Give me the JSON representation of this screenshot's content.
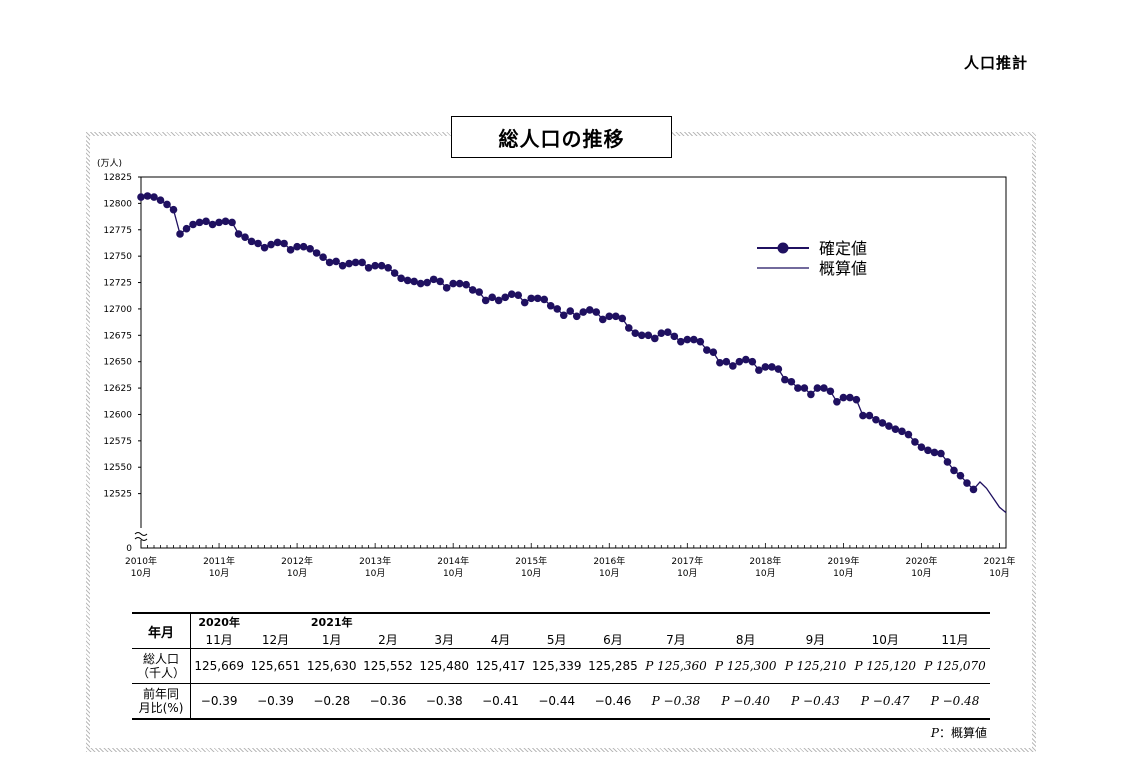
{
  "page": {
    "header_label": "人口推計"
  },
  "chart_data": {
    "type": "line",
    "title": "総人口の推移",
    "yunit": "(万人)",
    "ylim": [
      12500,
      12825
    ],
    "y_ticks": [
      12825,
      12800,
      12775,
      12750,
      12725,
      12700,
      12675,
      12650,
      12625,
      12600,
      12575,
      12550,
      12525
    ],
    "y_zero_label": "0",
    "y_axis_break": true,
    "x_ticks": [
      {
        "year": "2010年",
        "month": "10月"
      },
      {
        "year": "2011年",
        "month": "10月"
      },
      {
        "year": "2012年",
        "month": "10月"
      },
      {
        "year": "2013年",
        "month": "10月"
      },
      {
        "year": "2014年",
        "month": "10月"
      },
      {
        "year": "2015年",
        "month": "10月"
      },
      {
        "year": "2016年",
        "month": "10月"
      },
      {
        "year": "2017年",
        "month": "10月"
      },
      {
        "year": "2018年",
        "month": "10月"
      },
      {
        "year": "2019年",
        "month": "10月"
      },
      {
        "year": "2020年",
        "month": "10月"
      },
      {
        "year": "2021年",
        "month": "10月"
      }
    ],
    "legend": {
      "position": "top-right",
      "entries": [
        "確定値",
        "概算値"
      ]
    },
    "colors": {
      "line": "#1f1060",
      "marker": "#1f1060"
    },
    "series": [
      {
        "name": "確定値",
        "marker": "circle",
        "values": [
          12806,
          12807,
          12806,
          12803,
          12799,
          12794,
          12771,
          12776,
          12780,
          12782,
          12783,
          12780,
          12782,
          12783,
          12782,
          12771,
          12768,
          12764,
          12762,
          12758,
          12761,
          12763,
          12762,
          12756,
          12759,
          12759,
          12757,
          12753,
          12749,
          12744,
          12745,
          12741,
          12743,
          12744,
          12744,
          12739,
          12741,
          12741,
          12739,
          12734,
          12729,
          12727,
          12726,
          12724,
          12725,
          12728,
          12726,
          12720,
          12724,
          12724,
          12723,
          12718,
          12716,
          12708,
          12711,
          12708,
          12711,
          12714,
          12713,
          12706,
          12710,
          12710,
          12709,
          12703,
          12700,
          12694,
          12698,
          12693,
          12697,
          12699,
          12697,
          12690,
          12693,
          12693,
          12691,
          12682,
          12677,
          12675,
          12675,
          12672,
          12677,
          12678,
          12674,
          12669,
          12671,
          12671,
          12669,
          12661,
          12659,
          12649,
          12650,
          12646,
          12650,
          12652,
          12650,
          12642,
          12645,
          12645,
          12643,
          12633,
          12631,
          12625,
          12625,
          12619,
          12625,
          12625,
          12622,
          12612,
          12616,
          12616,
          12614,
          12599,
          12599,
          12595,
          12592,
          12589,
          12586,
          12584,
          12581,
          12574,
          12569,
          12566,
          12564,
          12563,
          12555,
          12547,
          12542,
          12535,
          12529
        ]
      },
      {
        "name": "概算値",
        "marker": "none",
        "start_index": 128,
        "values": [
          12529,
          12536,
          12530,
          12521,
          12512,
          12507
        ]
      }
    ]
  },
  "table": {
    "row_header_month": "年月",
    "year_labels": [
      {
        "col": 0,
        "text": "2020年"
      },
      {
        "col": 2,
        "text": "2021年"
      }
    ],
    "months": [
      "11月",
      "12月",
      "1月",
      "2月",
      "3月",
      "4月",
      "5月",
      "6月",
      "7月",
      "8月",
      "9月",
      "10月",
      "11月"
    ],
    "population_label_1": "総人口",
    "population_label_2": "（千人）",
    "population": [
      {
        "p": "",
        "v": "125,669"
      },
      {
        "p": "",
        "v": "125,651"
      },
      {
        "p": "",
        "v": "125,630"
      },
      {
        "p": "",
        "v": "125,552"
      },
      {
        "p": "",
        "v": "125,480"
      },
      {
        "p": "",
        "v": "125,417"
      },
      {
        "p": "",
        "v": "125,339"
      },
      {
        "p": "",
        "v": "125,285"
      },
      {
        "p": "P",
        "v": "125,360"
      },
      {
        "p": "P",
        "v": "125,300"
      },
      {
        "p": "P",
        "v": "125,210"
      },
      {
        "p": "P",
        "v": "125,120"
      },
      {
        "p": "P",
        "v": "125,070"
      }
    ],
    "change_label_1": "前年同",
    "change_label_2": "月比(%)",
    "change": [
      {
        "p": "",
        "v": "−0.39"
      },
      {
        "p": "",
        "v": "−0.39"
      },
      {
        "p": "",
        "v": "−0.28"
      },
      {
        "p": "",
        "v": "−0.36"
      },
      {
        "p": "",
        "v": "−0.38"
      },
      {
        "p": "",
        "v": "−0.41"
      },
      {
        "p": "",
        "v": "−0.44"
      },
      {
        "p": "",
        "v": "−0.46"
      },
      {
        "p": "P",
        "v": "−0.38"
      },
      {
        "p": "P",
        "v": "−0.40"
      },
      {
        "p": "P",
        "v": "−0.43"
      },
      {
        "p": "P",
        "v": "−0.47"
      },
      {
        "p": "P",
        "v": "−0.48"
      }
    ]
  },
  "note": {
    "p": "P",
    "text": "：概算値"
  }
}
